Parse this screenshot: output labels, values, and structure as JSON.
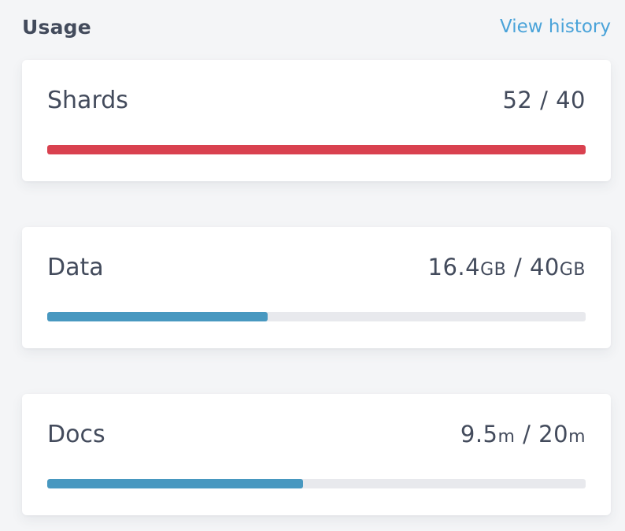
{
  "header": {
    "title": "Usage",
    "view_history_label": "View history"
  },
  "colors": {
    "over_limit": "#d9414f",
    "normal": "#4898c0",
    "track": "#e8e9ed",
    "link": "#4aa3d9",
    "text": "#434b5c"
  },
  "cards": [
    {
      "label": "Shards",
      "used": "52",
      "used_unit": "",
      "separator": "/",
      "limit": "40",
      "limit_unit": "",
      "percent": 100,
      "status": "over_limit"
    },
    {
      "label": "Data",
      "used": "16.4",
      "used_unit": "GB",
      "separator": "/",
      "limit": "40",
      "limit_unit": "GB",
      "percent": 41,
      "status": "normal"
    },
    {
      "label": "Docs",
      "used": "9.5",
      "used_unit": "m",
      "separator": "/",
      "limit": "20",
      "limit_unit": "m",
      "percent": 47.5,
      "status": "normal"
    }
  ]
}
